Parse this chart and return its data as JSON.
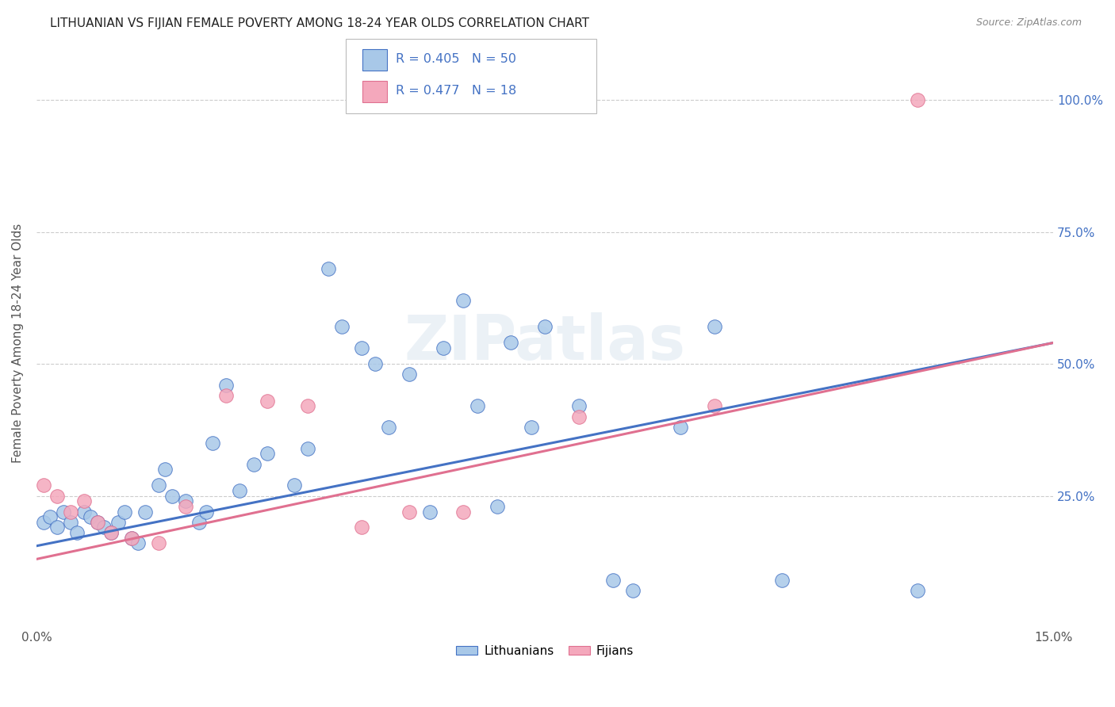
{
  "title": "LITHUANIAN VS FIJIAN FEMALE POVERTY AMONG 18-24 YEAR OLDS CORRELATION CHART",
  "source": "Source: ZipAtlas.com",
  "ylabel": "Female Poverty Among 18-24 Year Olds",
  "ytick_labels": [
    "25.0%",
    "50.0%",
    "75.0%",
    "100.0%"
  ],
  "ytick_vals": [
    0.25,
    0.5,
    0.75,
    1.0
  ],
  "xlim": [
    0.0,
    0.15
  ],
  "ylim": [
    0.0,
    1.08
  ],
  "r_lith": 0.405,
  "n_lith": 50,
  "r_fiji": 0.477,
  "n_fiji": 18,
  "color_lith": "#a8c8e8",
  "color_fiji": "#f4a8bc",
  "line_color_lith": "#4472c4",
  "line_color_fiji": "#e07090",
  "bg_color": "#ffffff",
  "grid_color": "#cccccc",
  "title_color": "#222222",
  "label_color_blue": "#4472c4",
  "watermark": "ZIPatlas",
  "lith_x": [
    0.001,
    0.002,
    0.003,
    0.004,
    0.005,
    0.006,
    0.007,
    0.008,
    0.009,
    0.01,
    0.011,
    0.012,
    0.013,
    0.014,
    0.015,
    0.016,
    0.018,
    0.019,
    0.02,
    0.022,
    0.024,
    0.025,
    0.026,
    0.028,
    0.03,
    0.032,
    0.034,
    0.038,
    0.04,
    0.043,
    0.045,
    0.048,
    0.05,
    0.052,
    0.055,
    0.058,
    0.06,
    0.063,
    0.065,
    0.068,
    0.07,
    0.073,
    0.075,
    0.08,
    0.085,
    0.088,
    0.095,
    0.1,
    0.11,
    0.13
  ],
  "lith_y": [
    0.2,
    0.21,
    0.19,
    0.22,
    0.2,
    0.18,
    0.22,
    0.21,
    0.2,
    0.19,
    0.18,
    0.2,
    0.22,
    0.17,
    0.16,
    0.22,
    0.27,
    0.3,
    0.25,
    0.24,
    0.2,
    0.22,
    0.35,
    0.46,
    0.26,
    0.31,
    0.33,
    0.27,
    0.34,
    0.68,
    0.57,
    0.53,
    0.5,
    0.38,
    0.48,
    0.22,
    0.53,
    0.62,
    0.42,
    0.23,
    0.54,
    0.38,
    0.57,
    0.42,
    0.09,
    0.07,
    0.38,
    0.57,
    0.09,
    0.07
  ],
  "fiji_x": [
    0.001,
    0.003,
    0.005,
    0.007,
    0.009,
    0.011,
    0.014,
    0.018,
    0.022,
    0.028,
    0.034,
    0.04,
    0.048,
    0.055,
    0.063,
    0.08,
    0.1,
    0.13
  ],
  "fiji_y": [
    0.27,
    0.25,
    0.22,
    0.24,
    0.2,
    0.18,
    0.17,
    0.16,
    0.23,
    0.44,
    0.43,
    0.42,
    0.19,
    0.22,
    0.22,
    0.4,
    0.42,
    1.0
  ],
  "lith_line_x": [
    0.0,
    0.15
  ],
  "lith_line_y": [
    0.155,
    0.54
  ],
  "fiji_line_x": [
    0.0,
    0.15
  ],
  "fiji_line_y": [
    0.13,
    0.54
  ]
}
